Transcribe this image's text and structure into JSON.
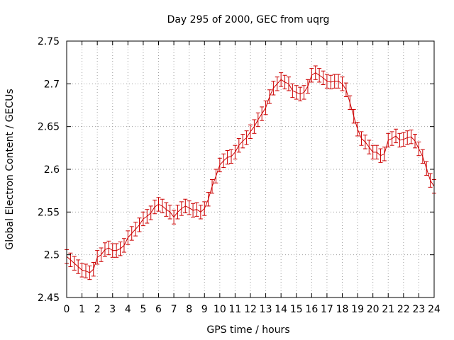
{
  "chart_data": {
    "type": "line",
    "title": "Day 295 of 2000, GEC from uqrg",
    "xlabel": "GPS time / hours",
    "ylabel": "Global Electron Content / GECUs",
    "xlim": [
      0,
      24
    ],
    "ylim": [
      2.45,
      2.75
    ],
    "xticks": [
      "0",
      "1",
      "2",
      "3",
      "4",
      "5",
      "6",
      "7",
      "8",
      "9",
      "10",
      "11",
      "12",
      "13",
      "14",
      "15",
      "16",
      "17",
      "18",
      "19",
      "20",
      "21",
      "22",
      "23",
      "24"
    ],
    "yticks": [
      "2.45",
      "2.5",
      "2.55",
      "2.6",
      "2.65",
      "2.7",
      "2.75"
    ],
    "grid": true,
    "series_color": "#cc0000",
    "error": 0.008,
    "series": [
      {
        "name": "GEC",
        "x": [
          0.0,
          0.25,
          0.5,
          0.75,
          1.0,
          1.25,
          1.5,
          1.75,
          2.0,
          2.25,
          2.5,
          2.75,
          3.0,
          3.25,
          3.5,
          3.75,
          4.0,
          4.25,
          4.5,
          4.75,
          5.0,
          5.25,
          5.5,
          5.75,
          6.0,
          6.25,
          6.5,
          6.75,
          7.0,
          7.25,
          7.5,
          7.75,
          8.0,
          8.25,
          8.5,
          8.75,
          9.0,
          9.25,
          9.5,
          9.75,
          10.0,
          10.25,
          10.5,
          10.75,
          11.0,
          11.25,
          11.5,
          11.75,
          12.0,
          12.25,
          12.5,
          12.75,
          13.0,
          13.25,
          13.5,
          13.75,
          14.0,
          14.25,
          14.5,
          14.75,
          15.0,
          15.25,
          15.5,
          15.75,
          16.0,
          16.25,
          16.5,
          16.75,
          17.0,
          17.25,
          17.5,
          17.75,
          18.0,
          18.25,
          18.5,
          18.75,
          19.0,
          19.25,
          19.5,
          19.75,
          20.0,
          20.25,
          20.5,
          20.75,
          21.0,
          21.25,
          21.5,
          21.75,
          22.0,
          22.25,
          22.5,
          22.75,
          23.0,
          23.25,
          23.5,
          23.75,
          24.0
        ],
        "y": [
          2.498,
          2.494,
          2.49,
          2.486,
          2.482,
          2.481,
          2.479,
          2.483,
          2.497,
          2.5,
          2.506,
          2.508,
          2.505,
          2.505,
          2.507,
          2.511,
          2.52,
          2.525,
          2.53,
          2.535,
          2.542,
          2.545,
          2.549,
          2.556,
          2.559,
          2.557,
          2.553,
          2.55,
          2.544,
          2.55,
          2.554,
          2.557,
          2.555,
          2.552,
          2.553,
          2.55,
          2.554,
          2.565,
          2.58,
          2.592,
          2.605,
          2.61,
          2.614,
          2.615,
          2.62,
          2.628,
          2.633,
          2.637,
          2.644,
          2.65,
          2.658,
          2.665,
          2.672,
          2.685,
          2.695,
          2.7,
          2.705,
          2.702,
          2.7,
          2.692,
          2.69,
          2.688,
          2.69,
          2.697,
          2.71,
          2.713,
          2.71,
          2.707,
          2.703,
          2.702,
          2.703,
          2.703,
          2.7,
          2.693,
          2.678,
          2.662,
          2.647,
          2.636,
          2.632,
          2.626,
          2.62,
          2.62,
          2.616,
          2.618,
          2.634,
          2.636,
          2.639,
          2.634,
          2.635,
          2.637,
          2.638,
          2.633,
          2.624,
          2.615,
          2.601,
          2.587,
          2.58
        ]
      }
    ]
  }
}
